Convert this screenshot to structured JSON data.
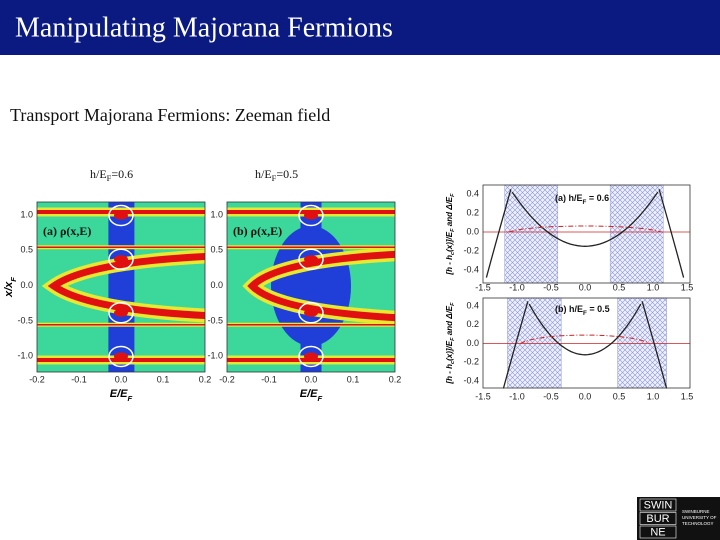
{
  "header": {
    "title": "Manipulating Majorana Fermions"
  },
  "subtitle": "Transport Majorana Fermions: Zeeman field",
  "density_plots": {
    "panels": [
      {
        "caption": [
          {
            "text": "h/E"
          },
          {
            "text": "F",
            "sub": true
          },
          {
            "text": "=0.6"
          }
        ],
        "label": "(a) ρ(x,E)"
      },
      {
        "caption": [
          {
            "text": "h/E"
          },
          {
            "text": "F",
            "sub": true
          },
          {
            "text": "=0.5"
          }
        ],
        "label": "(b) ρ(x,E)"
      }
    ],
    "x_tick_labels": [
      "-0.2",
      "-0.1",
      "0.0",
      "0.1",
      "0.2"
    ],
    "y_tick_labels": [
      "1.0",
      "0.5",
      "0.0",
      "-0.5",
      "-1.0"
    ],
    "x_label": [
      {
        "text": "E/E"
      },
      {
        "text": "F",
        "sub": true
      }
    ],
    "y_label": [
      {
        "text": "x/x"
      },
      {
        "text": "F",
        "sub": true
      }
    ]
  },
  "gap_plots": {
    "panels": [
      {
        "label": [
          {
            "text": "(a) h/E"
          },
          {
            "text": "F",
            "sub": true
          },
          {
            "text": " = 0.6"
          }
        ],
        "y_tick_labels": [
          "0.4",
          "0.2",
          "0.0",
          "-0.2",
          "-0.4"
        ]
      },
      {
        "label": [
          {
            "text": "(b) h/E"
          },
          {
            "text": "F",
            "sub": true
          },
          {
            "text": " = 0.5"
          }
        ],
        "y_tick_labels": [
          "0.4",
          "0.2",
          "0.0",
          "-0.2",
          "-0.4"
        ]
      }
    ],
    "x_tick_labels": [
      "-1.5",
      "-1.0",
      "-0.5",
      "0.0",
      "0.5",
      "1.0",
      "1.5"
    ],
    "y_label": [
      {
        "text": "[h - h"
      },
      {
        "text": "c",
        "sub": true
      },
      {
        "text": "(x)]/E"
      },
      {
        "text": "F",
        "sub": true
      },
      {
        "text": " and Δ/E"
      },
      {
        "text": "F",
        "sub": true
      }
    ]
  },
  "logo": {
    "mark": [
      "SWIN",
      "BUR",
      "NE"
    ],
    "text": [
      "SWINBURNE",
      "UNIVERSITY OF",
      "TECHNOLOGY"
    ]
  }
}
